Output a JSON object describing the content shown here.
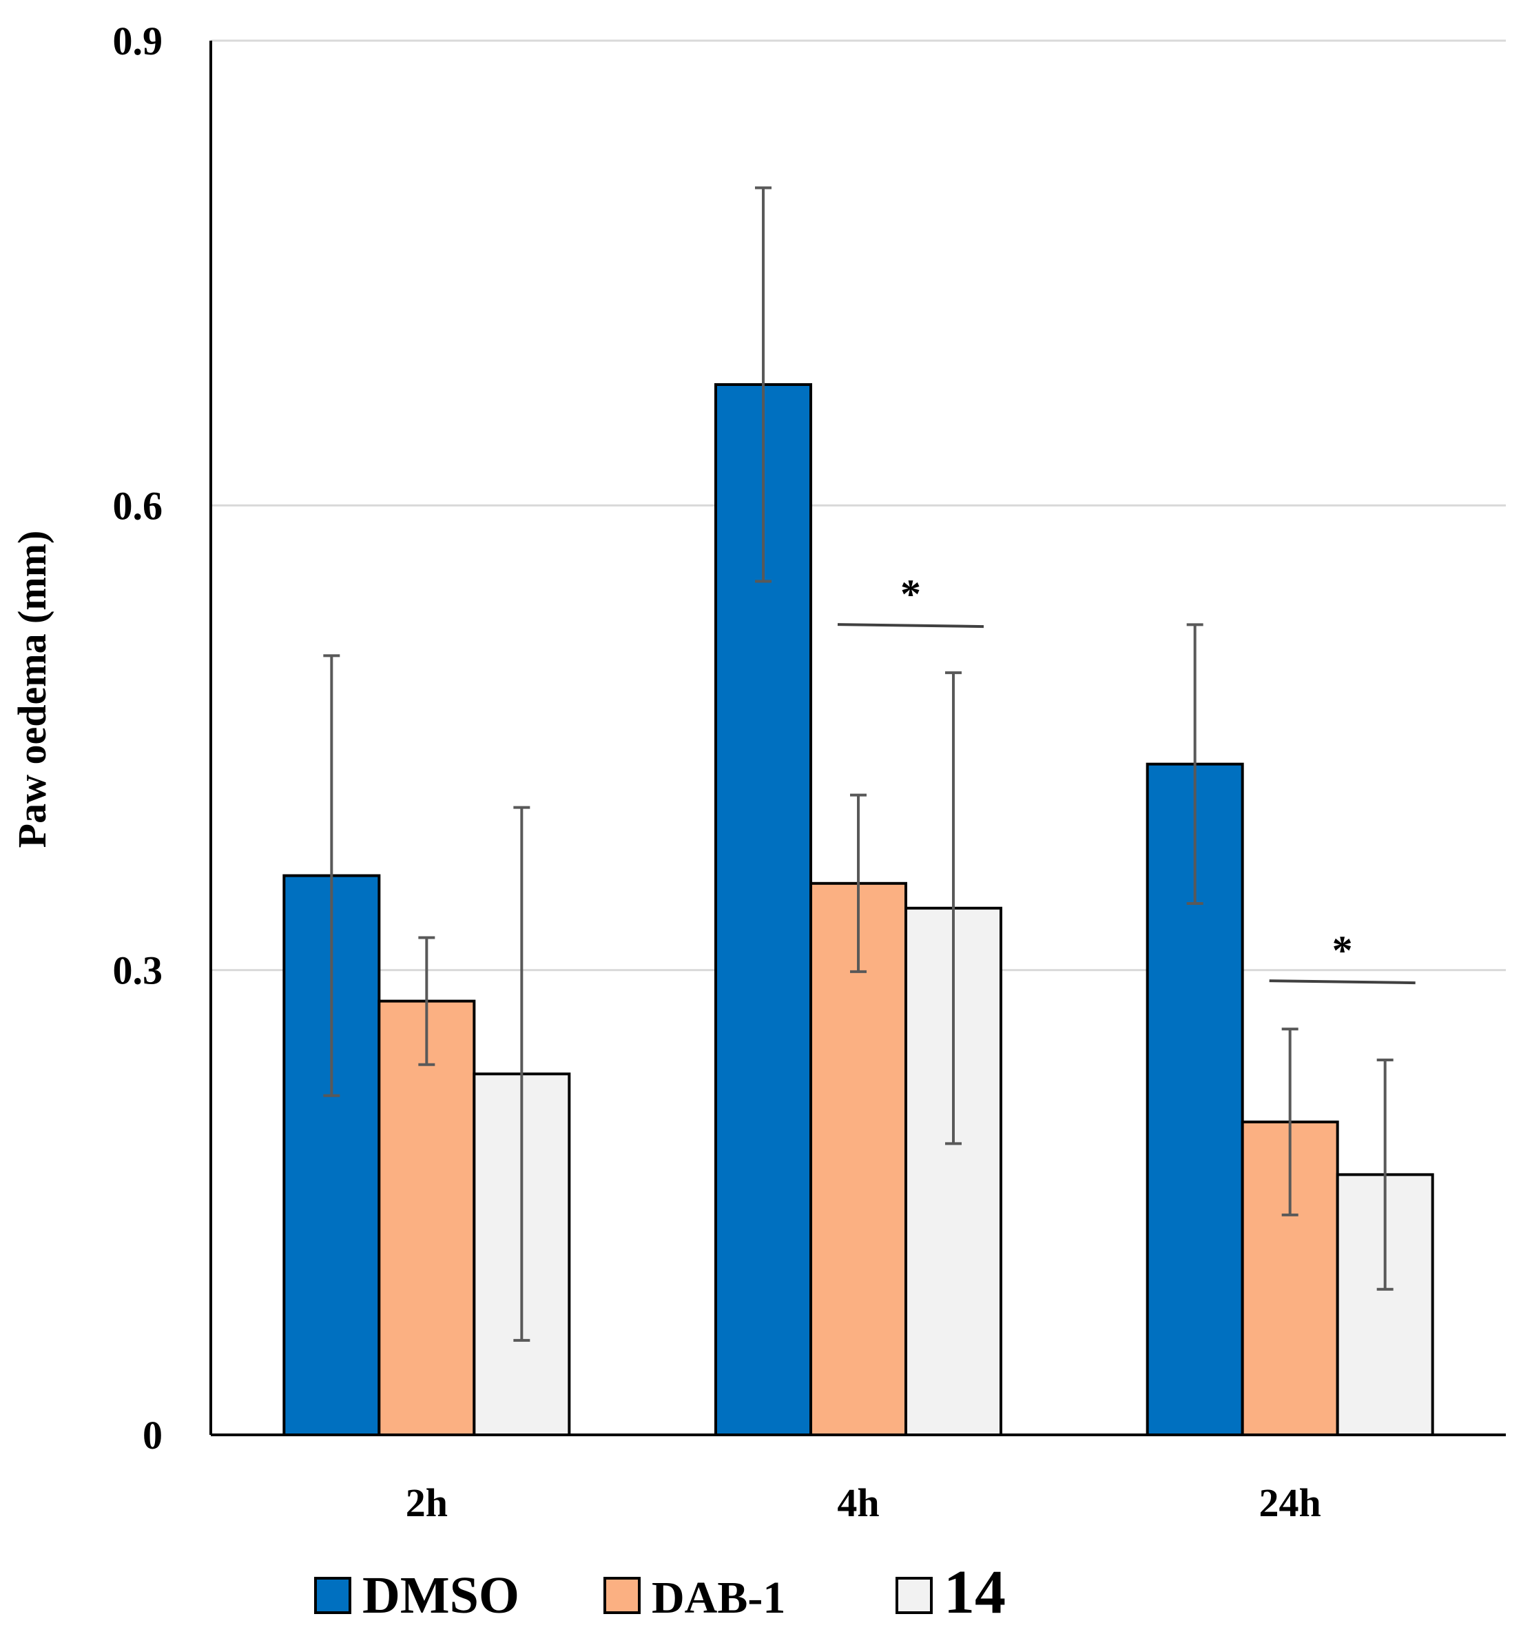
{
  "chart_data": {
    "type": "bar",
    "title": "",
    "xlabel": "",
    "ylabel": "Paw oedema (mm)",
    "ylim": [
      0,
      0.9
    ],
    "yticks": [
      0,
      0.3,
      0.6,
      0.9
    ],
    "ytick_labels": [
      "0",
      "0.3",
      "0.6",
      "0.9"
    ],
    "grid": true,
    "legend_position": "bottom",
    "categories": [
      "2h",
      "4h",
      "24h"
    ],
    "series": [
      {
        "name": "DMSO",
        "color": "#0070C0",
        "values": [
          0.361,
          0.678,
          0.433
        ],
        "errors": [
          0.142,
          0.127,
          0.09
        ]
      },
      {
        "name": "DAB-1",
        "color": "#FBB082",
        "values": [
          0.28,
          0.356,
          0.202
        ],
        "errors": [
          0.041,
          0.057,
          0.06
        ]
      },
      {
        "name": "14",
        "color": "#F2F2F2",
        "values": [
          0.233,
          0.34,
          0.168
        ],
        "errors": [
          0.172,
          0.152,
          0.074
        ]
      }
    ],
    "annotations": [
      {
        "text": "*",
        "category": "4h",
        "between": [
          "DAB-1",
          "14"
        ]
      },
      {
        "text": "*",
        "category": "24h",
        "between": [
          "DAB-1",
          "14"
        ]
      }
    ]
  }
}
